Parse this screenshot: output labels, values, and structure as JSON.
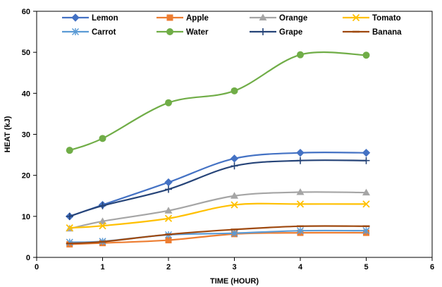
{
  "chart_data": {
    "type": "line",
    "xlabel": "TIME (HOUR)",
    "ylabel": "HEAT (kJ)",
    "xlim": [
      0,
      6
    ],
    "ylim": [
      0,
      60
    ],
    "xticks": [
      0,
      1,
      2,
      3,
      4,
      5,
      6
    ],
    "yticks": [
      0,
      10,
      20,
      30,
      40,
      50,
      60
    ],
    "grid": false,
    "legend_position": "top",
    "smooth": true,
    "x": [
      0.5,
      1,
      2,
      3,
      4,
      5
    ],
    "series": [
      {
        "name": "Lemon",
        "color": "#4472C4",
        "marker": "diamond",
        "values": [
          10.0,
          12.8,
          18.3,
          24.1,
          25.5,
          25.5
        ]
      },
      {
        "name": "Apple",
        "color": "#ED7D31",
        "marker": "square",
        "values": [
          3.2,
          3.5,
          4.2,
          5.7,
          6.0,
          6.0
        ]
      },
      {
        "name": "Orange",
        "color": "#A5A5A5",
        "marker": "triangle",
        "values": [
          7.0,
          8.8,
          11.4,
          15.0,
          15.9,
          15.8
        ]
      },
      {
        "name": "Tomato",
        "color": "#FFC000",
        "marker": "x",
        "values": [
          7.2,
          7.7,
          9.5,
          12.8,
          13.0,
          13.0
        ]
      },
      {
        "name": "Carrot",
        "color": "#5B9BD5",
        "marker": "star",
        "values": [
          3.7,
          3.9,
          5.5,
          5.9,
          6.5,
          6.5
        ]
      },
      {
        "name": "Water",
        "color": "#70AD47",
        "marker": "circle",
        "values": [
          26.1,
          29.0,
          37.7,
          40.6,
          49.4,
          49.3
        ]
      },
      {
        "name": "Grape",
        "color": "#264478",
        "marker": "plus",
        "values": [
          10.0,
          12.6,
          16.6,
          22.3,
          23.6,
          23.6
        ]
      },
      {
        "name": "Banana",
        "color": "#9E480E",
        "marker": "dash",
        "values": [
          3.4,
          3.8,
          5.6,
          6.8,
          7.6,
          7.6
        ]
      }
    ]
  }
}
